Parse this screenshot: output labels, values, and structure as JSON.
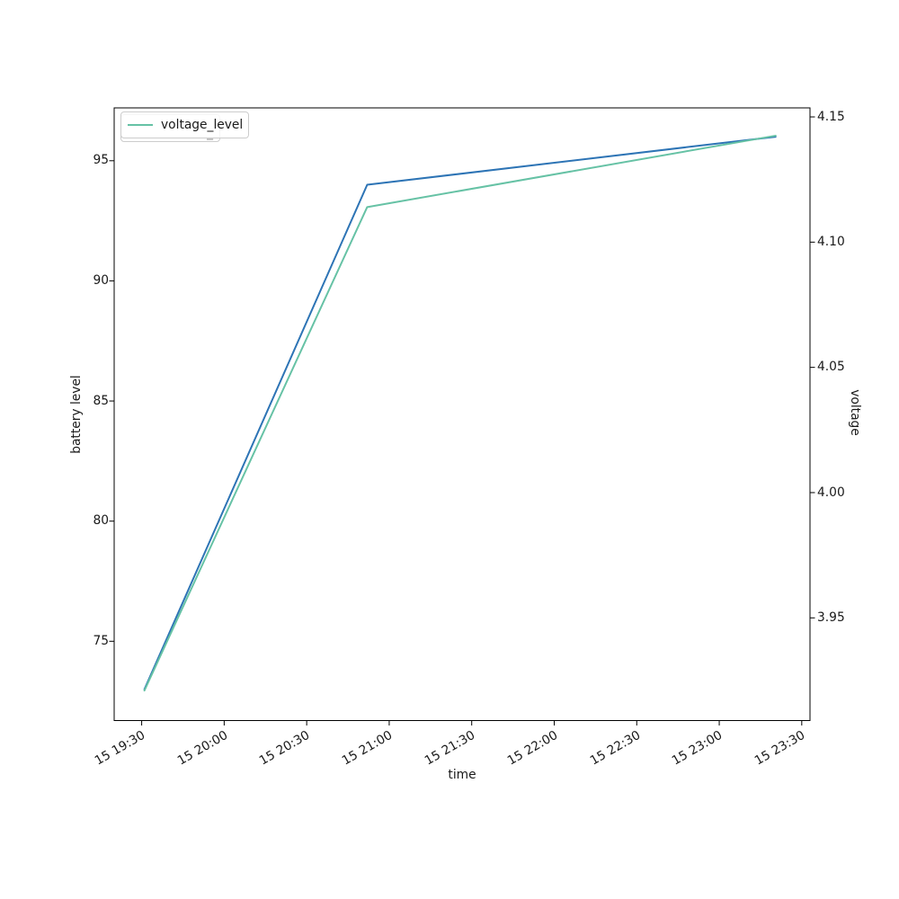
{
  "figure": {
    "xlabel": "time",
    "left_ylabel": "battery level",
    "right_ylabel": "voltage",
    "legend": {
      "label": "voltage_level",
      "artifact_glyph": "_"
    }
  },
  "chart_data": {
    "type": "line",
    "title": "",
    "xlabel": "time",
    "grid": false,
    "x_tick_labels": [
      "15 19:30",
      "15 20:00",
      "15 20:30",
      "15 21:00",
      "15 21:30",
      "15 22:00",
      "15 22:30",
      "15 23:00",
      "15 23:30"
    ],
    "x_tick_minutes": [
      1170,
      1200,
      1230,
      1260,
      1290,
      1320,
      1350,
      1380,
      1410
    ],
    "xlim_minutes": [
      1160,
      1413
    ],
    "left_axis": {
      "label": "battery level",
      "tick_labels": [
        "75",
        "80",
        "85",
        "90",
        "95"
      ],
      "tick_values": [
        75,
        80,
        85,
        90,
        95
      ],
      "ylim": [
        71.7,
        97.2
      ]
    },
    "right_axis": {
      "label": "voltage",
      "tick_labels": [
        "3.95",
        "4.00",
        "4.05",
        "4.10",
        "4.15"
      ],
      "tick_values": [
        3.95,
        4.0,
        4.05,
        4.1,
        4.15
      ],
      "ylim": [
        3.909,
        4.1536
      ]
    },
    "series": [
      {
        "name": "battery_level",
        "axis": "left",
        "color": "#2d74b5",
        "x_minutes": [
          1171,
          1252,
          1400.5
        ],
        "x_time_estimates": [
          "15 19:31",
          "15 20:52",
          "15 23:20"
        ],
        "values": [
          73,
          94,
          96
        ]
      },
      {
        "name": "voltage_level",
        "axis": "right",
        "color": "#66c2a5",
        "x_minutes": [
          1171,
          1252,
          1400.5
        ],
        "x_time_estimates": [
          "15 19:31",
          "15 20:52",
          "15 23:20"
        ],
        "values": [
          3.921,
          4.114,
          4.1425
        ]
      }
    ],
    "legend": {
      "entries": [
        "voltage_level"
      ],
      "position": "upper left"
    }
  }
}
